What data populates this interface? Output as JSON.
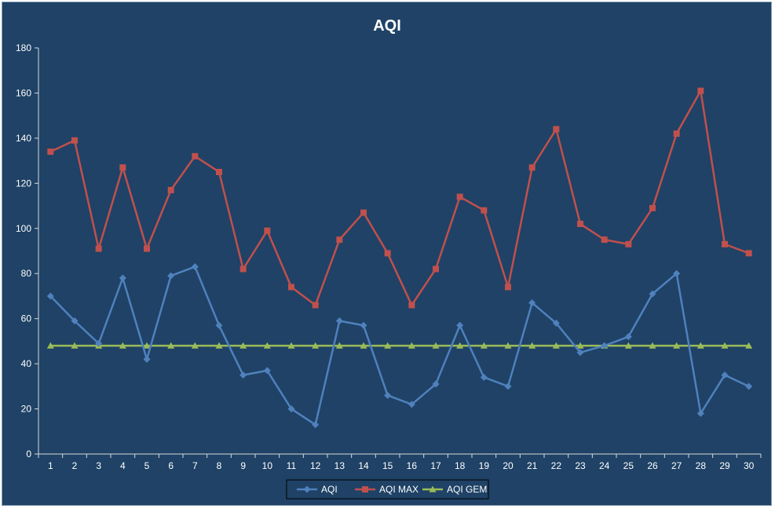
{
  "chart_data": {
    "type": "line",
    "title": "AQI",
    "xlabel": "",
    "ylabel": "",
    "categories": [
      "1",
      "2",
      "3",
      "4",
      "5",
      "6",
      "7",
      "8",
      "9",
      "10",
      "11",
      "12",
      "13",
      "14",
      "15",
      "16",
      "17",
      "18",
      "19",
      "20",
      "21",
      "22",
      "23",
      "24",
      "25",
      "26",
      "27",
      "28",
      "29",
      "30"
    ],
    "ylim": [
      0,
      180
    ],
    "yticks": [
      0,
      20,
      40,
      60,
      80,
      100,
      120,
      140,
      160,
      180
    ],
    "grid": false,
    "legend_position": "bottom",
    "series": [
      {
        "name": "AQI",
        "color": "#4f81bd",
        "marker": "diamond",
        "values": [
          70,
          59,
          49,
          78,
          42,
          79,
          83,
          57,
          35,
          37,
          20,
          13,
          59,
          57,
          26,
          22,
          31,
          57,
          34,
          30,
          67,
          58,
          45,
          48,
          52,
          71,
          80,
          18,
          35,
          30
        ]
      },
      {
        "name": "AQI MAX",
        "color": "#c0504d",
        "marker": "square",
        "values": [
          134,
          139,
          91,
          127,
          91,
          117,
          132,
          125,
          82,
          99,
          74,
          66,
          95,
          107,
          89,
          66,
          82,
          114,
          108,
          74,
          127,
          144,
          102,
          95,
          93,
          109,
          142,
          161,
          93,
          89
        ]
      },
      {
        "name": "AQI GEM",
        "color": "#9bbb59",
        "marker": "triangle",
        "values": [
          48,
          48,
          48,
          48,
          48,
          48,
          48,
          48,
          48,
          48,
          48,
          48,
          48,
          48,
          48,
          48,
          48,
          48,
          48,
          48,
          48,
          48,
          48,
          48,
          48,
          48,
          48,
          48,
          48,
          48
        ]
      }
    ]
  }
}
